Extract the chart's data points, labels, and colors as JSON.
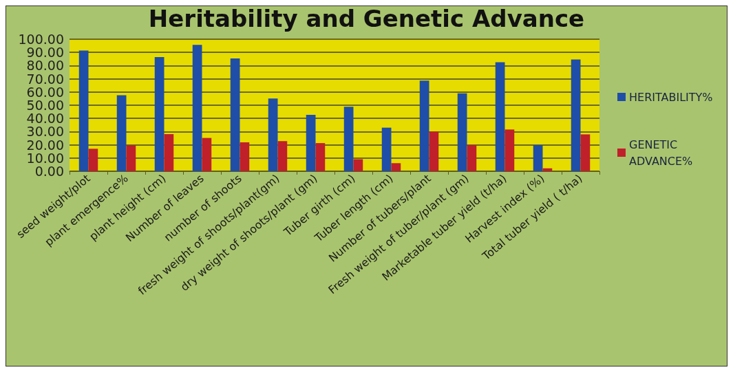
{
  "chart_data": {
    "type": "bar",
    "title": "Heritability and Genetic Advance",
    "categories": [
      "seed weight/plot",
      "plant emergence%",
      "plant height (cm)",
      "Number of leaves",
      "number of shoots",
      "fresh weight of shoots/plant(gm)",
      "dry weight of shoots/plant (gm)",
      "Tuber girth (cm)",
      "Tuber length (cm)",
      "Number of tubers/plant",
      "Fresh weight of tuber/plant (gm)",
      "Marketable tuber yield (t/ha)",
      "Harvest index (%)",
      "Total tuber yield ( t/ha)"
    ],
    "series": [
      {
        "name": "HERITABILITY%",
        "color": "#1f4ea8",
        "values": [
          91.4,
          57.6,
          86.5,
          95.7,
          85.4,
          55.1,
          42.7,
          48.8,
          33.0,
          68.6,
          59.0,
          82.6,
          19.8,
          84.7
        ]
      },
      {
        "name": "GENETIC ADVANCE%",
        "color": "#c0202a",
        "values": [
          17.0,
          19.6,
          28.1,
          25.2,
          21.9,
          22.8,
          21.3,
          9.1,
          6.1,
          30.0,
          19.8,
          31.6,
          2.2,
          27.9
        ]
      }
    ],
    "ylim": [
      0,
      100
    ],
    "yticks": [
      {
        "value": 0,
        "label": "0.00"
      },
      {
        "value": 10,
        "label": "10.00"
      },
      {
        "value": 20,
        "label": "20.00"
      },
      {
        "value": 30,
        "label": "30.00"
      },
      {
        "value": 40,
        "label": "40.00"
      },
      {
        "value": 50,
        "label": "50.00"
      },
      {
        "value": 60,
        "label": "60.00"
      },
      {
        "value": 70,
        "label": "70.00"
      },
      {
        "value": 80,
        "label": "80.00"
      },
      {
        "value": 90,
        "label": "90.00"
      },
      {
        "value": 100,
        "label": "100.00"
      }
    ],
    "grid": "y",
    "legend": "right"
  }
}
